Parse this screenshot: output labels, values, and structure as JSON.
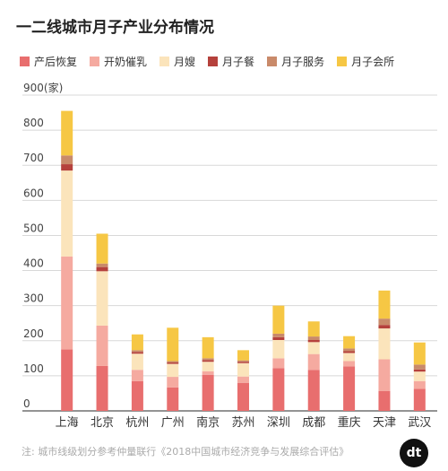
{
  "title": "一二线城市月子产业分布情况",
  "footnote": "注: 城市线级划分参考仲量联行《2018中国城市经济竞争与发展综合评估》",
  "logo_text": "dt",
  "chart_data": {
    "type": "bar",
    "stacked": true,
    "title": "一二线城市月子产业分布情况",
    "ylabel_unit": "(家)",
    "ylim": [
      0,
      900
    ],
    "yticks": [
      0,
      100,
      200,
      300,
      400,
      500,
      600,
      700,
      800,
      900
    ],
    "ytick_labels": [
      "0",
      "100",
      "200",
      "300",
      "400",
      "500",
      "600",
      "700",
      "800",
      "900"
    ],
    "categories": [
      "上海",
      "北京",
      "杭州",
      "广州",
      "南京",
      "苏州",
      "深圳",
      "成都",
      "重庆",
      "天津",
      "武汉"
    ],
    "series": [
      {
        "name": "产后恢复",
        "color": "#e86e6e",
        "values": [
          175,
          128,
          85,
          67,
          103,
          80,
          122,
          117,
          127,
          57,
          63
        ]
      },
      {
        "name": "开奶催乳",
        "color": "#f5aaa0",
        "values": [
          265,
          115,
          32,
          30,
          10,
          18,
          28,
          45,
          15,
          90,
          22
        ]
      },
      {
        "name": "月嫂",
        "color": "#fbe4bb",
        "values": [
          245,
          155,
          46,
          37,
          27,
          38,
          52,
          34,
          23,
          88,
          27
        ]
      },
      {
        "name": "月子餐",
        "color": "#b5413c",
        "values": [
          18,
          12,
          5,
          4,
          5,
          4,
          8,
          6,
          5,
          10,
          6
        ]
      },
      {
        "name": "月子服务",
        "color": "#c98a6a",
        "values": [
          25,
          10,
          5,
          4,
          5,
          4,
          10,
          10,
          8,
          18,
          14
        ]
      },
      {
        "name": "月子会所",
        "color": "#f6c744",
        "values": [
          127,
          85,
          45,
          95,
          60,
          29,
          80,
          43,
          35,
          80,
          63
        ]
      }
    ],
    "grid": true,
    "legend_position": "top-left"
  }
}
